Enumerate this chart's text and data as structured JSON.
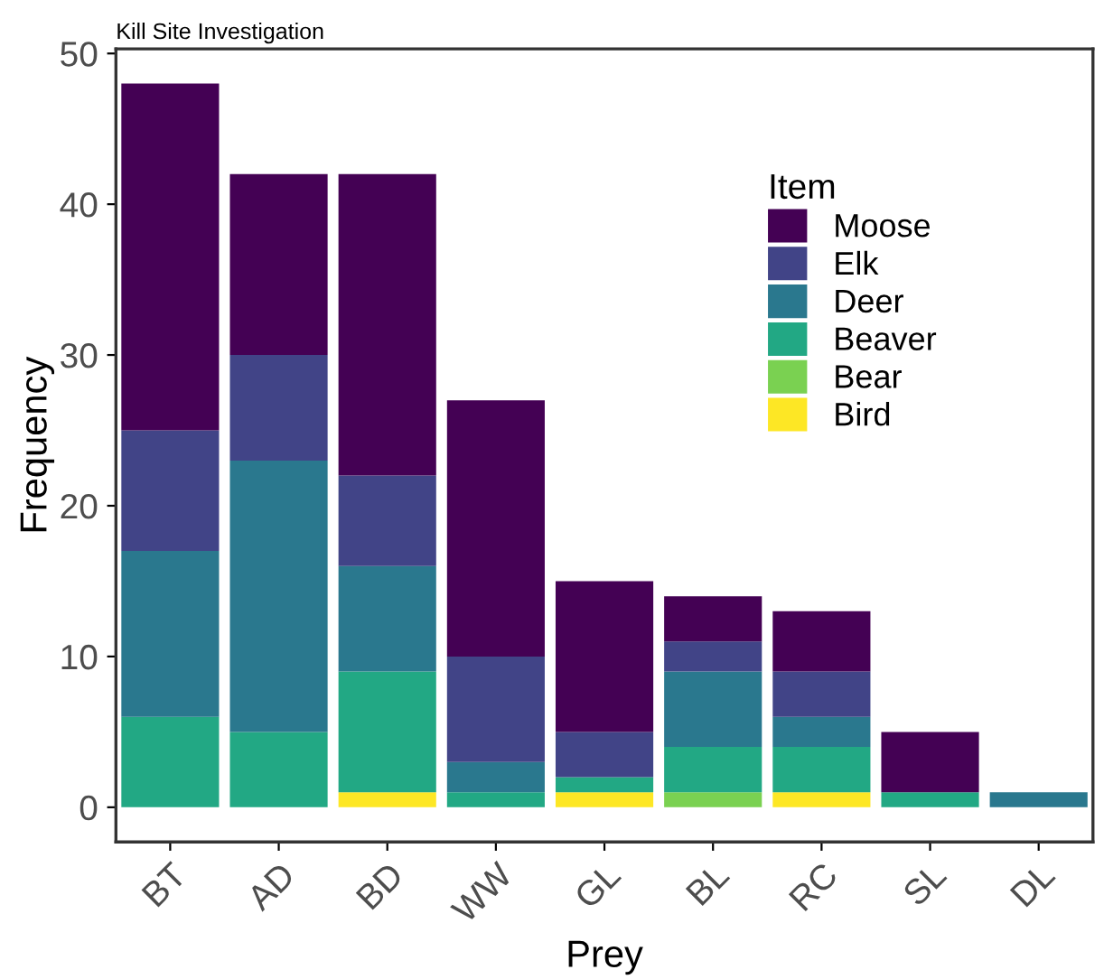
{
  "chart_data": {
    "type": "bar",
    "title": "Kill Site Investigation",
    "xlabel": "Prey",
    "ylabel": "Frequency",
    "legend_title": "Item",
    "categories": [
      "BT",
      "AD",
      "BD",
      "WW",
      "GL",
      "BL",
      "RC",
      "SL",
      "DL"
    ],
    "stacked": true,
    "legend": "right",
    "grid": false,
    "ylim": [
      -2.3,
      50.3
    ],
    "yticks": [
      0,
      10,
      20,
      30,
      40,
      50
    ],
    "series": [
      {
        "name": "Bird",
        "color": "#fde725",
        "values": [
          0,
          0,
          1,
          0,
          1,
          0,
          1,
          0,
          0
        ]
      },
      {
        "name": "Bear",
        "color": "#7ad151",
        "values": [
          0,
          0,
          0,
          0,
          0,
          1,
          0,
          0,
          0
        ]
      },
      {
        "name": "Beaver",
        "color": "#22a884",
        "values": [
          6,
          5,
          8,
          1,
          1,
          3,
          3,
          1,
          0
        ]
      },
      {
        "name": "Deer",
        "color": "#2a788e",
        "values": [
          11,
          18,
          7,
          2,
          0,
          5,
          2,
          0,
          1
        ]
      },
      {
        "name": "Elk",
        "color": "#414487",
        "values": [
          8,
          7,
          6,
          7,
          3,
          2,
          3,
          0,
          0
        ]
      },
      {
        "name": "Moose",
        "color": "#440154",
        "values": [
          23,
          12,
          20,
          17,
          10,
          3,
          4,
          4,
          0
        ]
      }
    ]
  }
}
